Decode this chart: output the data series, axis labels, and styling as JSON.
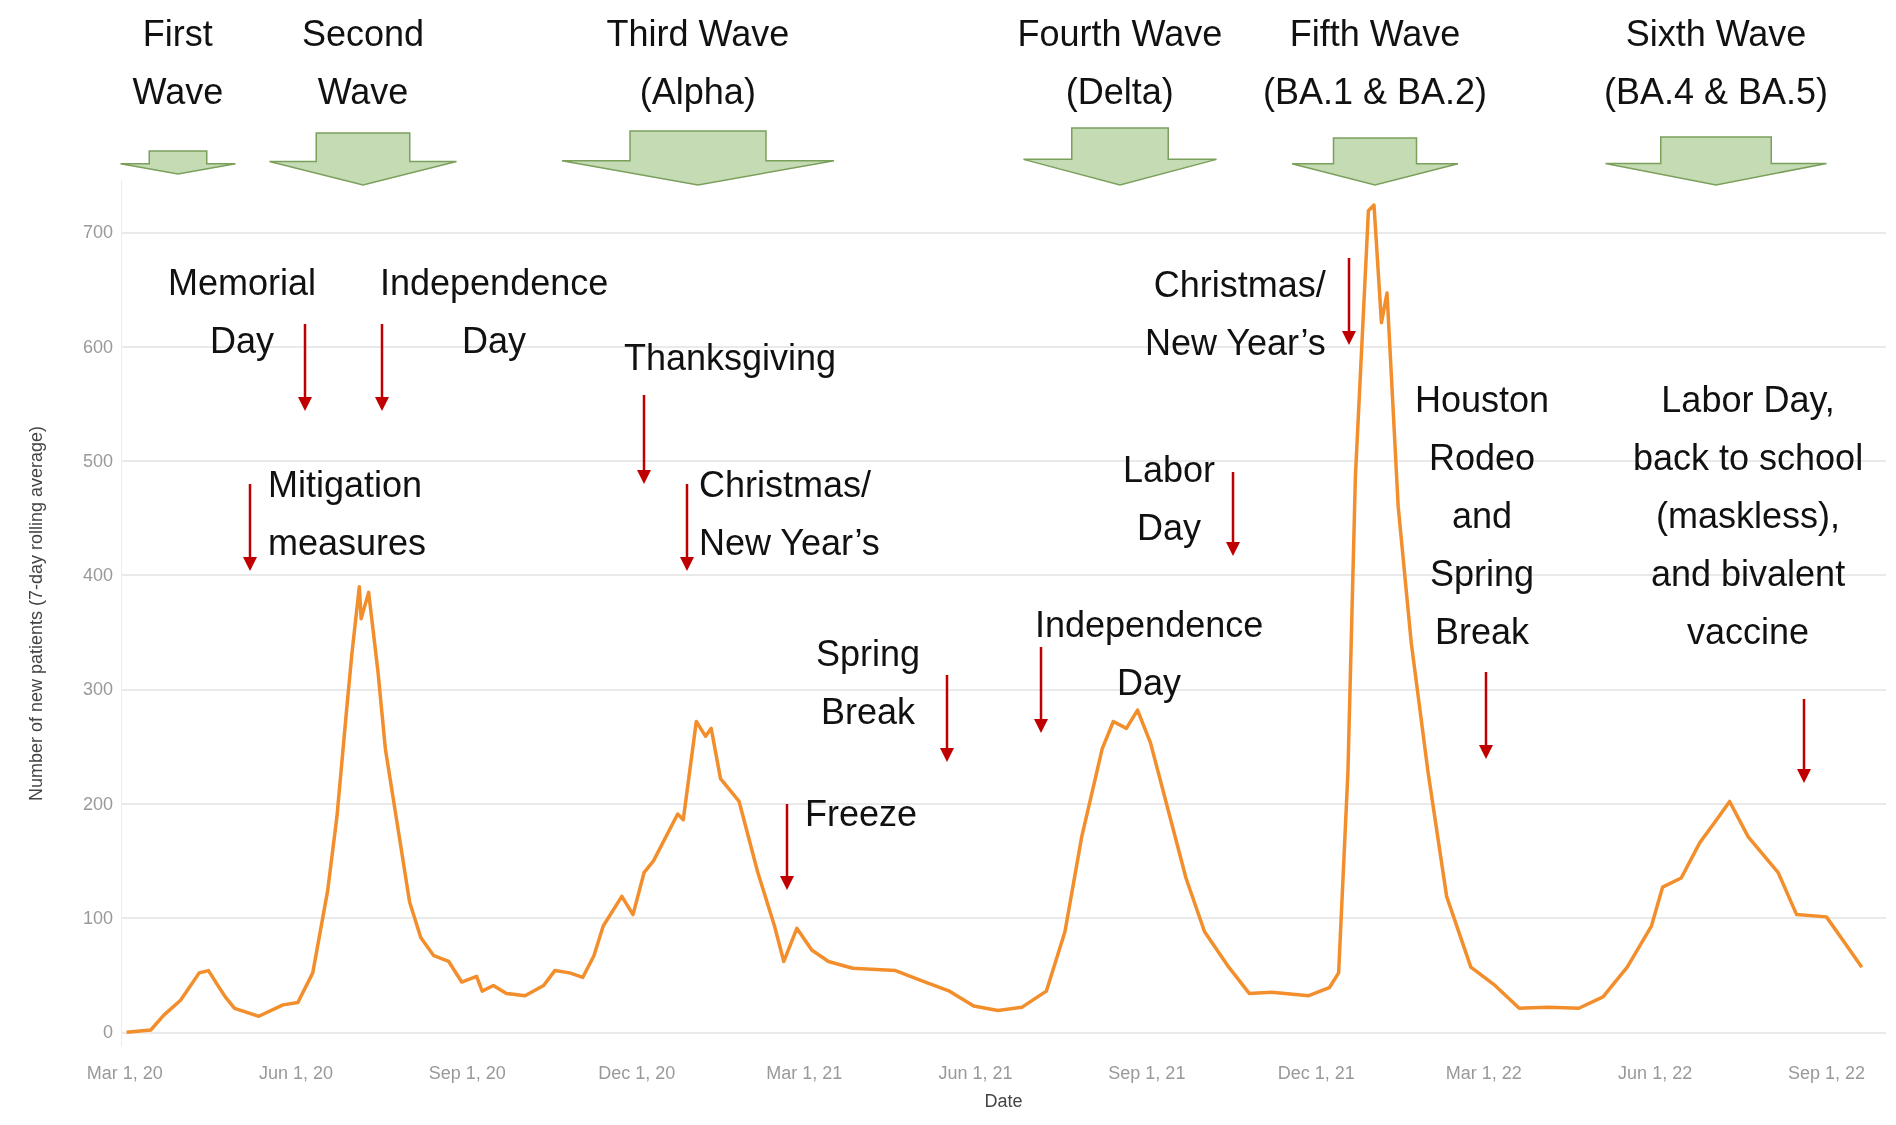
{
  "chart_data": {
    "type": "line",
    "xlabel": "Date",
    "ylabel": "Number of new patients (7-day rolling average)",
    "color": "#f28e2b",
    "x": [
      "2020-03-02",
      "2020-03-15",
      "2020-03-22",
      "2020-03-31",
      "2020-04-10",
      "2020-04-15",
      "2020-04-20",
      "2020-04-24",
      "2020-04-29",
      "2020-05-12",
      "2020-05-25",
      "2020-06-02",
      "2020-06-10",
      "2020-06-18",
      "2020-06-23",
      "2020-06-28",
      "2020-07-01",
      "2020-07-05",
      "2020-07-06",
      "2020-07-10",
      "2020-07-15",
      "2020-07-19",
      "2020-07-26",
      "2020-08-01",
      "2020-08-07",
      "2020-08-14",
      "2020-08-22",
      "2020-08-29",
      "2020-09-06",
      "2020-09-09",
      "2020-09-15",
      "2020-09-22",
      "2020-10-02",
      "2020-10-12",
      "2020-10-18",
      "2020-10-26",
      "2020-11-02",
      "2020-11-08",
      "2020-11-13",
      "2020-11-23",
      "2020-11-29",
      "2020-12-05",
      "2020-12-10",
      "2020-12-23",
      "2020-12-26",
      "2021-01-02",
      "2021-01-07",
      "2021-01-10",
      "2021-01-15",
      "2021-01-25",
      "2021-02-04",
      "2021-02-13",
      "2021-02-18",
      "2021-02-25",
      "2021-03-05",
      "2021-03-14",
      "2021-03-27",
      "2021-04-19",
      "2021-05-05",
      "2021-05-18",
      "2021-05-31",
      "2021-06-13",
      "2021-06-26",
      "2021-07-09",
      "2021-07-19",
      "2021-07-28",
      "2021-08-08",
      "2021-08-14",
      "2021-08-21",
      "2021-08-27",
      "2021-09-03",
      "2021-09-13",
      "2021-09-22",
      "2021-10-02",
      "2021-10-15",
      "2021-10-26",
      "2021-11-07",
      "2021-11-27",
      "2021-12-08",
      "2021-12-13",
      "2021-12-18",
      "2021-12-22",
      "2021-12-29",
      "2022-01-01",
      "2022-01-05",
      "2022-01-08",
      "2022-01-14",
      "2022-01-21",
      "2022-01-30",
      "2022-02-09",
      "2022-02-22",
      "2022-03-07",
      "2022-03-20",
      "2022-04-05",
      "2022-04-21",
      "2022-05-04",
      "2022-05-17",
      "2022-05-30",
      "2022-06-05",
      "2022-06-15",
      "2022-06-25",
      "2022-07-04",
      "2022-07-11",
      "2022-07-21",
      "2022-08-06",
      "2022-08-16",
      "2022-09-01",
      "2022-09-11",
      "2022-09-20"
    ],
    "values": [
      0,
      2,
      15,
      28,
      52,
      54,
      41,
      31,
      21,
      14,
      24,
      26,
      52,
      124,
      189,
      279,
      331,
      390,
      362,
      385,
      316,
      248,
      176,
      114,
      83,
      67,
      62,
      44,
      49,
      36,
      41,
      34,
      32,
      41,
      54,
      52,
      48,
      67,
      93,
      119,
      103,
      140,
      150,
      191,
      186,
      272,
      259,
      266,
      222,
      202,
      140,
      93,
      62,
      91,
      72,
      62,
      56,
      54,
      44,
      36,
      23,
      19,
      22,
      36,
      88,
      171,
      248,
      272,
      266,
      282,
      253,
      191,
      135,
      88,
      57,
      34,
      35,
      32,
      39,
      52,
      228,
      486,
      719,
      724,
      621,
      647,
      460,
      341,
      228,
      119,
      57,
      41,
      21,
      22,
      21,
      31,
      57,
      93,
      127,
      135,
      166,
      186,
      202,
      171,
      140,
      103,
      101,
      78,
      57
    ],
    "xlim": [
      "2020-02-28",
      "2022-10-03"
    ],
    "xticks": [
      {
        "value": "2020-03-01",
        "label": "Mar 1, 20"
      },
      {
        "value": "2020-06-01",
        "label": "Jun 1, 20"
      },
      {
        "value": "2020-09-01",
        "label": "Sep 1, 20"
      },
      {
        "value": "2020-12-01",
        "label": "Dec 1, 20"
      },
      {
        "value": "2021-03-01",
        "label": "Mar 1, 21"
      },
      {
        "value": "2021-06-01",
        "label": "Jun 1, 21"
      },
      {
        "value": "2021-09-01",
        "label": "Sep 1, 21"
      },
      {
        "value": "2021-12-01",
        "label": "Dec 1, 21"
      },
      {
        "value": "2022-03-01",
        "label": "Mar 1, 22"
      },
      {
        "value": "2022-06-01",
        "label": "Jun 1, 22"
      },
      {
        "value": "2022-09-01",
        "label": "Sep 1, 22"
      }
    ],
    "ylim": [
      -12,
      745
    ],
    "yticks": [
      0,
      100,
      200,
      300,
      400,
      500,
      600,
      700
    ],
    "grid": "y",
    "annotations": [
      "First\nWave",
      "Second\nWave",
      "Third Wave\n(Alpha)",
      "Fourth Wave\n(Delta)",
      "Fifth Wave\n(BA.1 & BA.2)",
      "Sixth Wave\n(BA.4 & BA.5)",
      "Memorial\nDay",
      "Independence\nDay",
      "Mitigation\nmeasures",
      "Thanksgiving",
      "Christmas/\nNew Year’s",
      "Spring\nBreak",
      "Freeze",
      "Independence\nDay",
      "Labor\nDay",
      "Christmas/\nNew Year’s",
      "Houston\nRodeo\nand\nSpring\nBreak",
      "Labor Day,\nback to school\n(maskless),\nand bivalent\nvaccine"
    ]
  }
}
